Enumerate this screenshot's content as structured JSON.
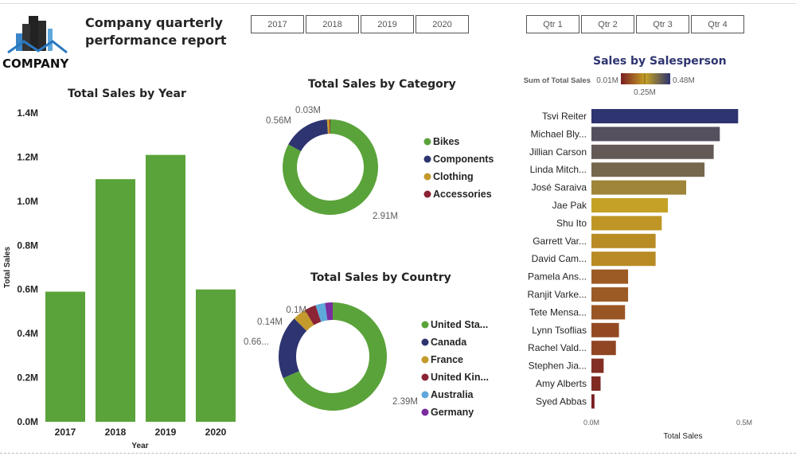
{
  "header": {
    "title": "Company quarterly performance report",
    "logo_text": "COMPANY"
  },
  "year_slicer": [
    "2017",
    "2018",
    "2019",
    "2020"
  ],
  "quarter_slicer": [
    "Qtr 1",
    "Qtr 2",
    "Qtr 3",
    "Qtr 4"
  ],
  "colors": {
    "green": "#5aa33a",
    "navy": "#2e3470",
    "gold": "#c49a2c",
    "maroon": "#8b2434",
    "light_blue": "#5fa8dc",
    "purple": "#7b2c9f"
  },
  "chart_data": [
    {
      "type": "bar",
      "title": "Total Sales by Year",
      "xlabel": "Year",
      "ylabel": "Total Sales",
      "categories": [
        "2017",
        "2018",
        "2019",
        "2020"
      ],
      "values": [
        0.59,
        1.1,
        1.21,
        0.6
      ],
      "unit": "M",
      "ylim": [
        0,
        1.4
      ],
      "yticks": [
        "0.0M",
        "0.2M",
        "0.4M",
        "0.6M",
        "0.8M",
        "1.0M",
        "1.2M",
        "1.4M"
      ],
      "grid": false
    },
    {
      "type": "pie",
      "subtype": "donut",
      "title": "Total Sales by Category",
      "categories": [
        "Bikes",
        "Components",
        "Clothing",
        "Accessories"
      ],
      "values": [
        2.91,
        0.56,
        0.03,
        0.01
      ],
      "data_labels": [
        "2.91M",
        "0.56M",
        "0.03M",
        ""
      ],
      "legend": "right"
    },
    {
      "type": "pie",
      "subtype": "donut",
      "title": "Total Sales by Country",
      "categories": [
        "United Sta...",
        "Canada",
        "France",
        "United Kin...",
        "Australia",
        "Germany"
      ],
      "values": [
        2.39,
        0.66,
        0.14,
        0.12,
        0.1,
        0.08
      ],
      "data_labels": [
        "2.39M",
        "0.66...",
        "0.14M",
        "",
        "0.1M",
        ""
      ],
      "legend": "right"
    },
    {
      "type": "bar",
      "orientation": "horizontal",
      "title": "Sales by Salesperson",
      "xlabel": "Total Sales",
      "legend_title": "Sum of Total Sales",
      "color_scale": {
        "min": "0.01M",
        "mid": "0.25M",
        "max": "0.48M"
      },
      "xticks": [
        "0.0M",
        "0.5M"
      ],
      "xlim": [
        0,
        0.5
      ],
      "categories": [
        "Tsvi Reiter",
        "Michael Bly...",
        "Jillian Carson",
        "Linda Mitch...",
        "José Saraiva",
        "Jae Pak",
        "Shu Ito",
        "Garrett Var...",
        "David Cam...",
        "Pamela Ans...",
        "Ranjit Varke...",
        "Tete Mensa...",
        "Lynn Tsoflias",
        "Rachel Vald...",
        "Stephen Jia...",
        "Amy Alberts",
        "Syed Abbas"
      ],
      "values": [
        0.48,
        0.42,
        0.4,
        0.37,
        0.31,
        0.25,
        0.23,
        0.21,
        0.21,
        0.12,
        0.12,
        0.11,
        0.09,
        0.08,
        0.04,
        0.03,
        0.01
      ]
    }
  ]
}
